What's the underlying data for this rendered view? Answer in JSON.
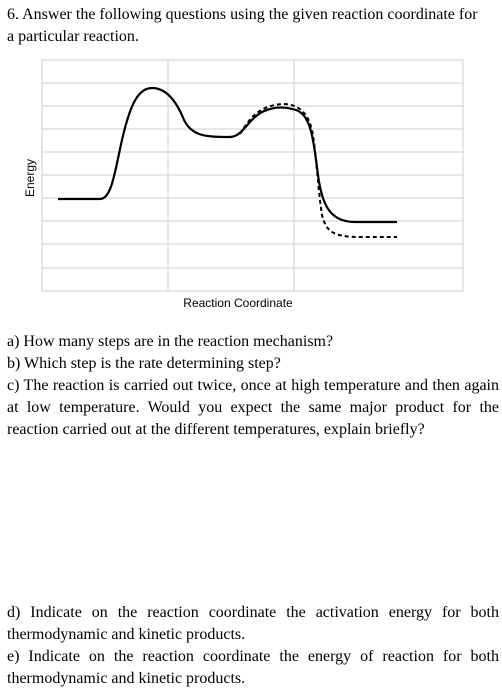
{
  "question_header": "6. Answer the following questions using the given reaction coordinate for a particular reaction.",
  "diagram": {
    "xlabel": "Reaction Coordinate",
    "ylabel": "Energy",
    "grid": true,
    "curves": [
      {
        "style": "solid",
        "description_shape": [
          "reactant plateau",
          "first high peak",
          "intermediate valley",
          "second peak",
          "product plateau"
        ]
      },
      {
        "style": "dashed",
        "description_shape": [
          "second higher peak",
          "lower product plateau"
        ]
      }
    ]
  },
  "questions": {
    "a": "a) How many steps are in the reaction mechanism?",
    "b": "b) Which step is the rate determining step?",
    "c": "c) The reaction is carried out twice, once at high temperature and then again at low temperature.  Would you expect the same major product for the reaction carried out at the different temperatures, explain briefly?",
    "d": "d)  Indicate on the reaction coordinate the activation energy for both thermodynamic and kinetic products.",
    "e": "e) Indicate on the reaction coordinate the energy of reaction for both thermodynamic and kinetic products."
  }
}
